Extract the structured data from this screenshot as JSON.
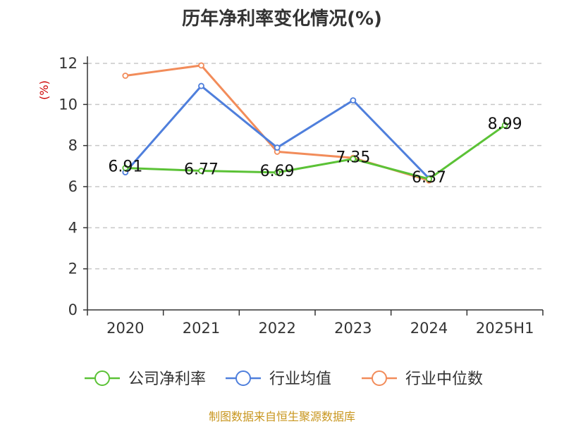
{
  "chart_data": {
    "type": "line",
    "title": "历年净利率变化情况(%)",
    "ylabel": "(%)",
    "xlabel": "",
    "categories": [
      "2020",
      "2021",
      "2022",
      "2023",
      "2024",
      "2025H1"
    ],
    "ylim": [
      0,
      12
    ],
    "yticks": [
      0,
      2,
      4,
      6,
      8,
      10,
      12
    ],
    "grid": "horizontal-dashed",
    "legend_position": "bottom",
    "series": [
      {
        "name": "公司净利率",
        "color": "#5bc236",
        "values": [
          6.91,
          6.77,
          6.69,
          7.35,
          6.37,
          8.99
        ],
        "labels": [
          "6.91",
          "6.77",
          "6.69",
          "7.35",
          "6.37",
          "8.99"
        ]
      },
      {
        "name": "行业均值",
        "color": "#4f7fdc",
        "values": [
          6.7,
          10.9,
          7.9,
          10.2,
          6.4,
          null
        ]
      },
      {
        "name": "行业中位数",
        "color": "#f28c5a",
        "values": [
          11.4,
          11.9,
          7.7,
          7.4,
          6.3,
          null
        ]
      }
    ]
  },
  "source_note": "制图数据来自恒生聚源数据库"
}
